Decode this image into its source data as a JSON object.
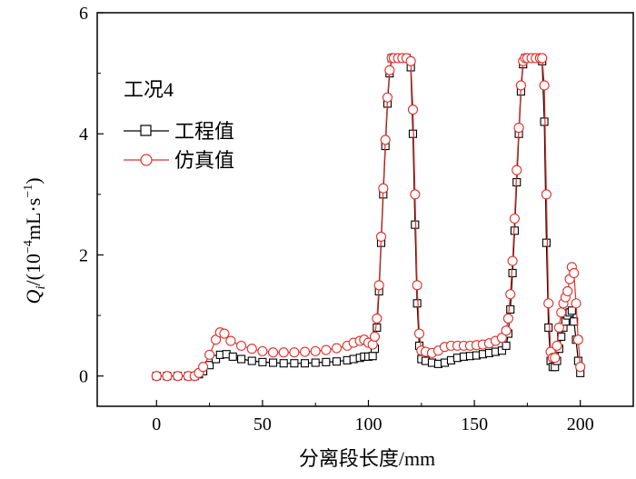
{
  "chart_data": {
    "type": "line",
    "title": "",
    "annotation": "工况4",
    "xlabel": "分离段长度/mm",
    "ylabel": {
      "symbol": "Q",
      "subscript": "i",
      "unit_prefix": "/(10",
      "unit_exp": "−4",
      "unit_main": "mL·s",
      "unit_exp2": "−1",
      "unit_suffix": ")"
    },
    "xlim": [
      -28,
      225
    ],
    "ylim": [
      -0.5,
      6
    ],
    "xticks": [
      0,
      50,
      100,
      150,
      200
    ],
    "yticks": [
      0,
      2,
      4,
      6
    ],
    "xtick_labels": [
      "0",
      "50",
      "100",
      "150",
      "200"
    ],
    "ytick_labels": [
      "0",
      "2",
      "4",
      "6"
    ],
    "grid": false,
    "legend": {
      "position": "upper-left"
    },
    "series": [
      {
        "name": "工程值",
        "marker": "square",
        "color": "#000000",
        "x": [
          0,
          5,
          10,
          15,
          18,
          20,
          22,
          25,
          28,
          30,
          33,
          36,
          40,
          45,
          50,
          55,
          60,
          65,
          70,
          75,
          80,
          85,
          90,
          93,
          96,
          98,
          100,
          102,
          103,
          104,
          105,
          106,
          107,
          108,
          109,
          110,
          111,
          112,
          114,
          116,
          118,
          120,
          121,
          122,
          123,
          124,
          125,
          127,
          130,
          133,
          136,
          139,
          142,
          145,
          148,
          151,
          154,
          157,
          160,
          163,
          165,
          166,
          167,
          168,
          169,
          170,
          171,
          172,
          173,
          174,
          175,
          177,
          179,
          181,
          182,
          183,
          184,
          185,
          186,
          187,
          188,
          189,
          190,
          191,
          192,
          193,
          194,
          195,
          196,
          197,
          198,
          199,
          200
        ],
        "y": [
          0,
          0,
          0,
          0,
          0,
          0.03,
          0.08,
          0.18,
          0.28,
          0.35,
          0.36,
          0.32,
          0.28,
          0.25,
          0.23,
          0.22,
          0.21,
          0.21,
          0.21,
          0.22,
          0.23,
          0.24,
          0.26,
          0.28,
          0.3,
          0.32,
          0.32,
          0.33,
          0.45,
          0.8,
          1.4,
          2.2,
          3.0,
          3.8,
          4.5,
          5.0,
          5.25,
          5.25,
          5.25,
          5.25,
          5.25,
          5.1,
          4.0,
          2.5,
          1.2,
          0.5,
          0.28,
          0.25,
          0.22,
          0.2,
          0.22,
          0.26,
          0.3,
          0.32,
          0.33,
          0.34,
          0.36,
          0.38,
          0.4,
          0.42,
          0.5,
          0.7,
          1.1,
          1.7,
          2.4,
          3.2,
          4.0,
          4.7,
          5.15,
          5.25,
          5.25,
          5.25,
          5.25,
          5.25,
          5.2,
          4.2,
          2.2,
          0.8,
          0.25,
          0.15,
          0.15,
          0.25,
          0.45,
          0.65,
          0.8,
          0.9,
          1.0,
          1.05,
          1.08,
          0.9,
          0.6,
          0.25,
          0.05
        ]
      },
      {
        "name": "仿真值",
        "marker": "circle",
        "color": "#e0302a",
        "x": [
          0,
          5,
          10,
          15,
          18,
          20,
          22,
          25,
          28,
          30,
          32,
          35,
          40,
          45,
          50,
          55,
          60,
          65,
          70,
          75,
          80,
          85,
          90,
          93,
          96,
          98,
          100,
          102,
          103,
          104,
          105,
          106,
          107,
          108,
          109,
          110,
          111,
          112,
          114,
          116,
          118,
          120,
          121,
          122,
          123,
          124,
          125,
          127,
          130,
          133,
          136,
          139,
          142,
          145,
          148,
          151,
          154,
          157,
          160,
          163,
          165,
          166,
          167,
          168,
          169,
          170,
          171,
          172,
          173,
          174,
          175,
          177,
          179,
          181,
          182,
          183,
          184,
          185,
          186,
          187,
          188,
          189,
          190,
          191,
          192,
          193,
          194,
          195,
          196,
          197,
          198,
          199,
          200
        ],
        "y": [
          0,
          0,
          0,
          0,
          0,
          0.05,
          0.15,
          0.35,
          0.6,
          0.72,
          0.7,
          0.58,
          0.5,
          0.45,
          0.41,
          0.39,
          0.39,
          0.39,
          0.4,
          0.41,
          0.43,
          0.46,
          0.5,
          0.55,
          0.58,
          0.6,
          0.55,
          0.52,
          0.65,
          0.95,
          1.5,
          2.3,
          3.1,
          3.9,
          4.6,
          5.05,
          5.25,
          5.25,
          5.25,
          5.25,
          5.25,
          5.2,
          4.4,
          3.0,
          1.5,
          0.7,
          0.42,
          0.4,
          0.38,
          0.42,
          0.48,
          0.5,
          0.5,
          0.5,
          0.5,
          0.51,
          0.52,
          0.54,
          0.58,
          0.63,
          0.75,
          0.95,
          1.35,
          1.9,
          2.6,
          3.4,
          4.1,
          4.8,
          5.2,
          5.25,
          5.25,
          5.25,
          5.25,
          5.25,
          5.25,
          4.8,
          3.0,
          1.2,
          0.4,
          0.3,
          0.3,
          0.5,
          0.8,
          1.05,
          1.2,
          1.3,
          1.4,
          1.6,
          1.8,
          1.7,
          1.2,
          0.6,
          0.15
        ]
      }
    ]
  }
}
